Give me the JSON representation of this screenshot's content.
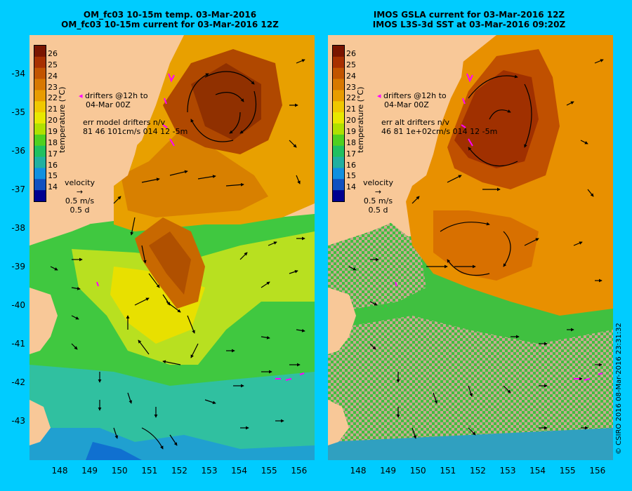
{
  "left_panel": {
    "title_line1": "OM_fc03 10-15m temp. 03-Mar-2016",
    "title_line2": "OM_fc03 10-15m current for 03-Mar-2016 12Z",
    "drifters_line1": "drifters @12h to",
    "drifters_line2": "04-Mar 00Z",
    "err_line1": "err model drifters n/v",
    "err_line2": "81 46 101cm/s 014 12 -5m"
  },
  "right_panel": {
    "title_line1": "IMOS GSLA current for 03-Mar-2016 12Z",
    "title_line2": "IMOS L3S-3d SST at 03-Mar-2016 09:20Z",
    "drifters_line1": "drifters @12h to",
    "drifters_line2": "04-Mar 00Z",
    "err_line1": "err alt drifters n/v",
    "err_line2": "46 81 1e+02cm/s 014 12 -5m"
  },
  "legend": {
    "velocity_label": "velocity",
    "speed": "0.5 m/s",
    "duration": "0.5 d"
  },
  "colorbar": {
    "label": "temperature (°C)",
    "ticks": [
      "26",
      "25",
      "24",
      "23",
      "22",
      "21",
      "20",
      "19",
      "18",
      "17",
      "16",
      "15",
      "14"
    ],
    "colors": [
      "#7a1500",
      "#a83000",
      "#c25400",
      "#d87800",
      "#e89c00",
      "#f0c800",
      "#e8e800",
      "#b0e000",
      "#50d020",
      "#20c060",
      "#20b0a0",
      "#1090e0",
      "#1050c0",
      "#000090"
    ]
  },
  "axes": {
    "lat_labels": [
      "-34",
      "-35",
      "-36",
      "-37",
      "-38",
      "-39",
      "-40",
      "-41",
      "-42",
      "-43"
    ],
    "lon_labels": [
      "148",
      "149",
      "150",
      "151",
      "152",
      "153",
      "154",
      "155",
      "156"
    ]
  },
  "credit": "© CSIRO 2016  08-Mar-2016 23:31:32",
  "colors": {
    "background": "#00ccff",
    "land": "#f8c898",
    "drifter": "#ff00ff",
    "cloud": "#c8a890"
  }
}
